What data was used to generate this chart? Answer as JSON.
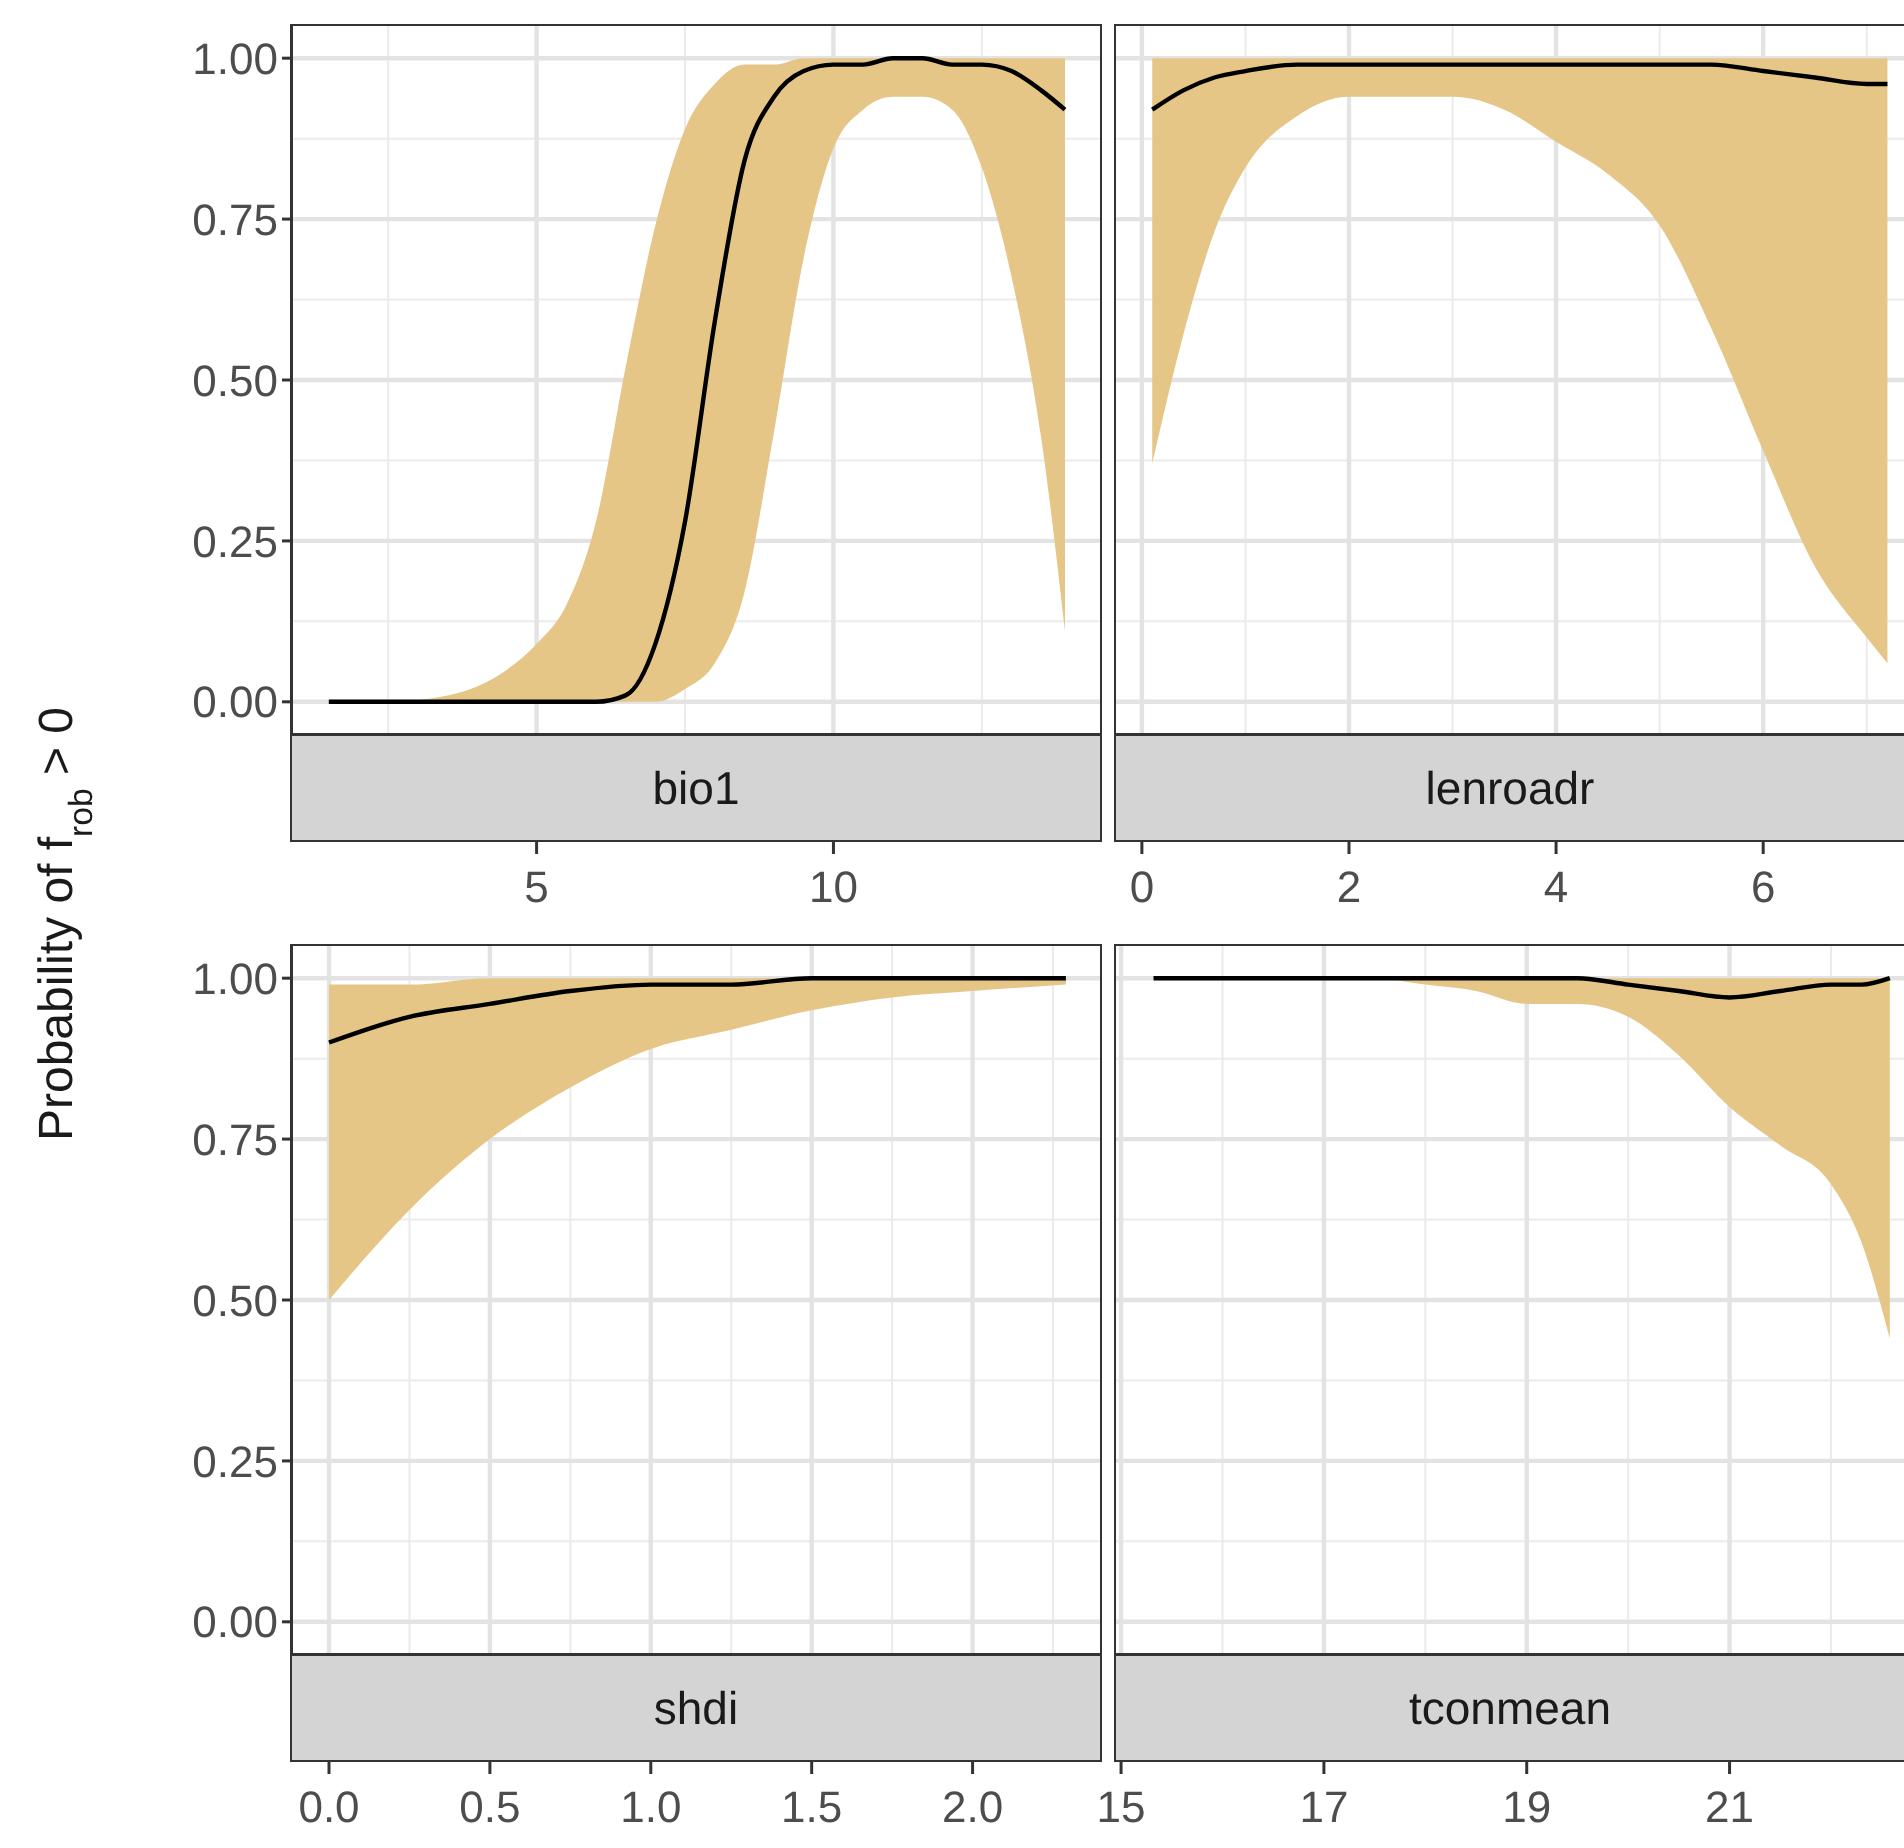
{
  "chart_data": [
    {
      "type": "line",
      "title": "bio1",
      "ylabel": "Probability of  f$_{rob}$ > 0",
      "x": [
        1.5,
        2.5,
        3.5,
        4.5,
        5,
        5.5,
        6,
        6.5,
        7,
        7.5,
        8,
        8.5,
        9,
        9.5,
        10,
        10.5,
        11,
        11.5,
        12,
        12.5,
        13,
        13.5,
        13.9
      ],
      "series": [
        {
          "color": "#000000",
          "values": [
            0,
            0,
            0,
            0,
            0,
            0,
            0,
            0.01,
            0.09,
            0.28,
            0.59,
            0.84,
            0.94,
            0.98,
            0.99,
            0.99,
            1,
            1,
            0.99,
            0.99,
            0.98,
            0.95,
            0.92
          ],
          "lower": [
            0,
            0,
            0,
            0,
            0,
            0,
            0,
            0,
            0,
            0.02,
            0.06,
            0.17,
            0.42,
            0.69,
            0.86,
            0.92,
            0.94,
            0.94,
            0.92,
            0.83,
            0.66,
            0.41,
            0.11
          ],
          "upper": [
            0,
            0,
            0.01,
            0.05,
            0.09,
            0.15,
            0.28,
            0.52,
            0.74,
            0.89,
            0.96,
            0.99,
            0.99,
            1,
            1,
            1,
            1,
            1,
            1,
            1,
            1,
            1,
            1
          ]
        }
      ],
      "xlim": [
        0.88,
        14.49
      ],
      "xticks": [
        5,
        10
      ],
      "ylim": [
        -0.05,
        1.05
      ],
      "yticks": [
        {
          "value": 0,
          "label": "0.00"
        },
        {
          "value": 0.25,
          "label": "0.25"
        },
        {
          "value": 0.5,
          "label": "0.50"
        },
        {
          "value": 0.75,
          "label": "0.75"
        },
        {
          "value": 1,
          "label": "1.00"
        }
      ],
      "grid": true
    },
    {
      "type": "line",
      "title": "lenroadr",
      "x": [
        0.1,
        0.4,
        0.7,
        1,
        1.5,
        2,
        2.5,
        3,
        3.5,
        4,
        4.5,
        5,
        5.5,
        6,
        6.5,
        7,
        7.2
      ],
      "series": [
        {
          "color": "#000000",
          "values": [
            0.92,
            0.95,
            0.97,
            0.98,
            0.99,
            0.99,
            0.99,
            0.99,
            0.99,
            0.99,
            0.99,
            0.99,
            0.99,
            0.98,
            0.97,
            0.96,
            0.96
          ],
          "lower": [
            0.37,
            0.57,
            0.73,
            0.83,
            0.91,
            0.94,
            0.94,
            0.94,
            0.92,
            0.87,
            0.82,
            0.74,
            0.58,
            0.39,
            0.21,
            0.1,
            0.06
          ],
          "upper": [
            1,
            1,
            1,
            1,
            1,
            1,
            1,
            1,
            1,
            1,
            1,
            1,
            1,
            1,
            1,
            1,
            1
          ]
        }
      ],
      "xlim": [
        -0.25,
        7.36
      ],
      "xticks": [
        0,
        2,
        4,
        6
      ],
      "ylim": [
        -0.05,
        1.05
      ],
      "yticks": [
        0,
        0.25,
        0.5,
        0.75,
        1
      ],
      "grid": true,
      "tick_labels": "x"
    },
    {
      "type": "line",
      "title": "shdi",
      "x": [
        0,
        0.25,
        0.5,
        0.75,
        1,
        1.25,
        1.5,
        1.75,
        2,
        2.29
      ],
      "series": [
        {
          "color": "#000000",
          "values": [
            0.9,
            0.94,
            0.96,
            0.98,
            0.99,
            0.99,
            1,
            1,
            1,
            1
          ],
          "lower": [
            0.5,
            0.64,
            0.75,
            0.83,
            0.89,
            0.92,
            0.95,
            0.97,
            0.98,
            0.99
          ],
          "upper": [
            0.99,
            0.99,
            1,
            1,
            1,
            1,
            1,
            1,
            1,
            1
          ]
        }
      ],
      "xlim": [
        -0.115,
        2.396
      ],
      "xticks": [
        {
          "value": 0,
          "label": "0.0"
        },
        {
          "value": 0.5,
          "label": "0.5"
        },
        {
          "value": 1,
          "label": "1.0"
        },
        {
          "value": 1.5,
          "label": "1.5"
        },
        {
          "value": 2,
          "label": "2.0"
        }
      ],
      "ylim": [
        -0.05,
        1.05
      ],
      "yticks": [
        {
          "value": 0,
          "label": "0.00"
        },
        {
          "value": 0.25,
          "label": "0.25"
        },
        {
          "value": 0.5,
          "label": "0.50"
        },
        {
          "value": 0.75,
          "label": "0.75"
        },
        {
          "value": 1,
          "label": "1.00"
        }
      ],
      "grid": true
    },
    {
      "type": "line",
      "title": "tconmean",
      "x": [
        15.32,
        16,
        17,
        17.5,
        18,
        18.5,
        19,
        19.5,
        20,
        20.5,
        21,
        21.5,
        22,
        22.3,
        22.58
      ],
      "series": [
        {
          "color": "#000000",
          "values": [
            1,
            1,
            1,
            1,
            1,
            1,
            1,
            1,
            0.99,
            0.98,
            0.97,
            0.98,
            0.99,
            0.99,
            1
          ],
          "lower": [
            1,
            1,
            1,
            1,
            0.99,
            0.98,
            0.96,
            0.96,
            0.94,
            0.88,
            0.8,
            0.74,
            0.68,
            0.59,
            0.44
          ],
          "upper": [
            1,
            1,
            1,
            1,
            1,
            1,
            1,
            1,
            1,
            1,
            1,
            1,
            1,
            1,
            1
          ]
        }
      ],
      "xlim": [
        14.95,
        22.72
      ],
      "xticks": [
        15,
        17,
        19,
        21
      ],
      "ylim": [
        -0.05,
        1.05
      ],
      "yticks": [
        0,
        0.25,
        0.5,
        0.75,
        1
      ],
      "grid": true,
      "tick_labels": "x"
    }
  ]
}
